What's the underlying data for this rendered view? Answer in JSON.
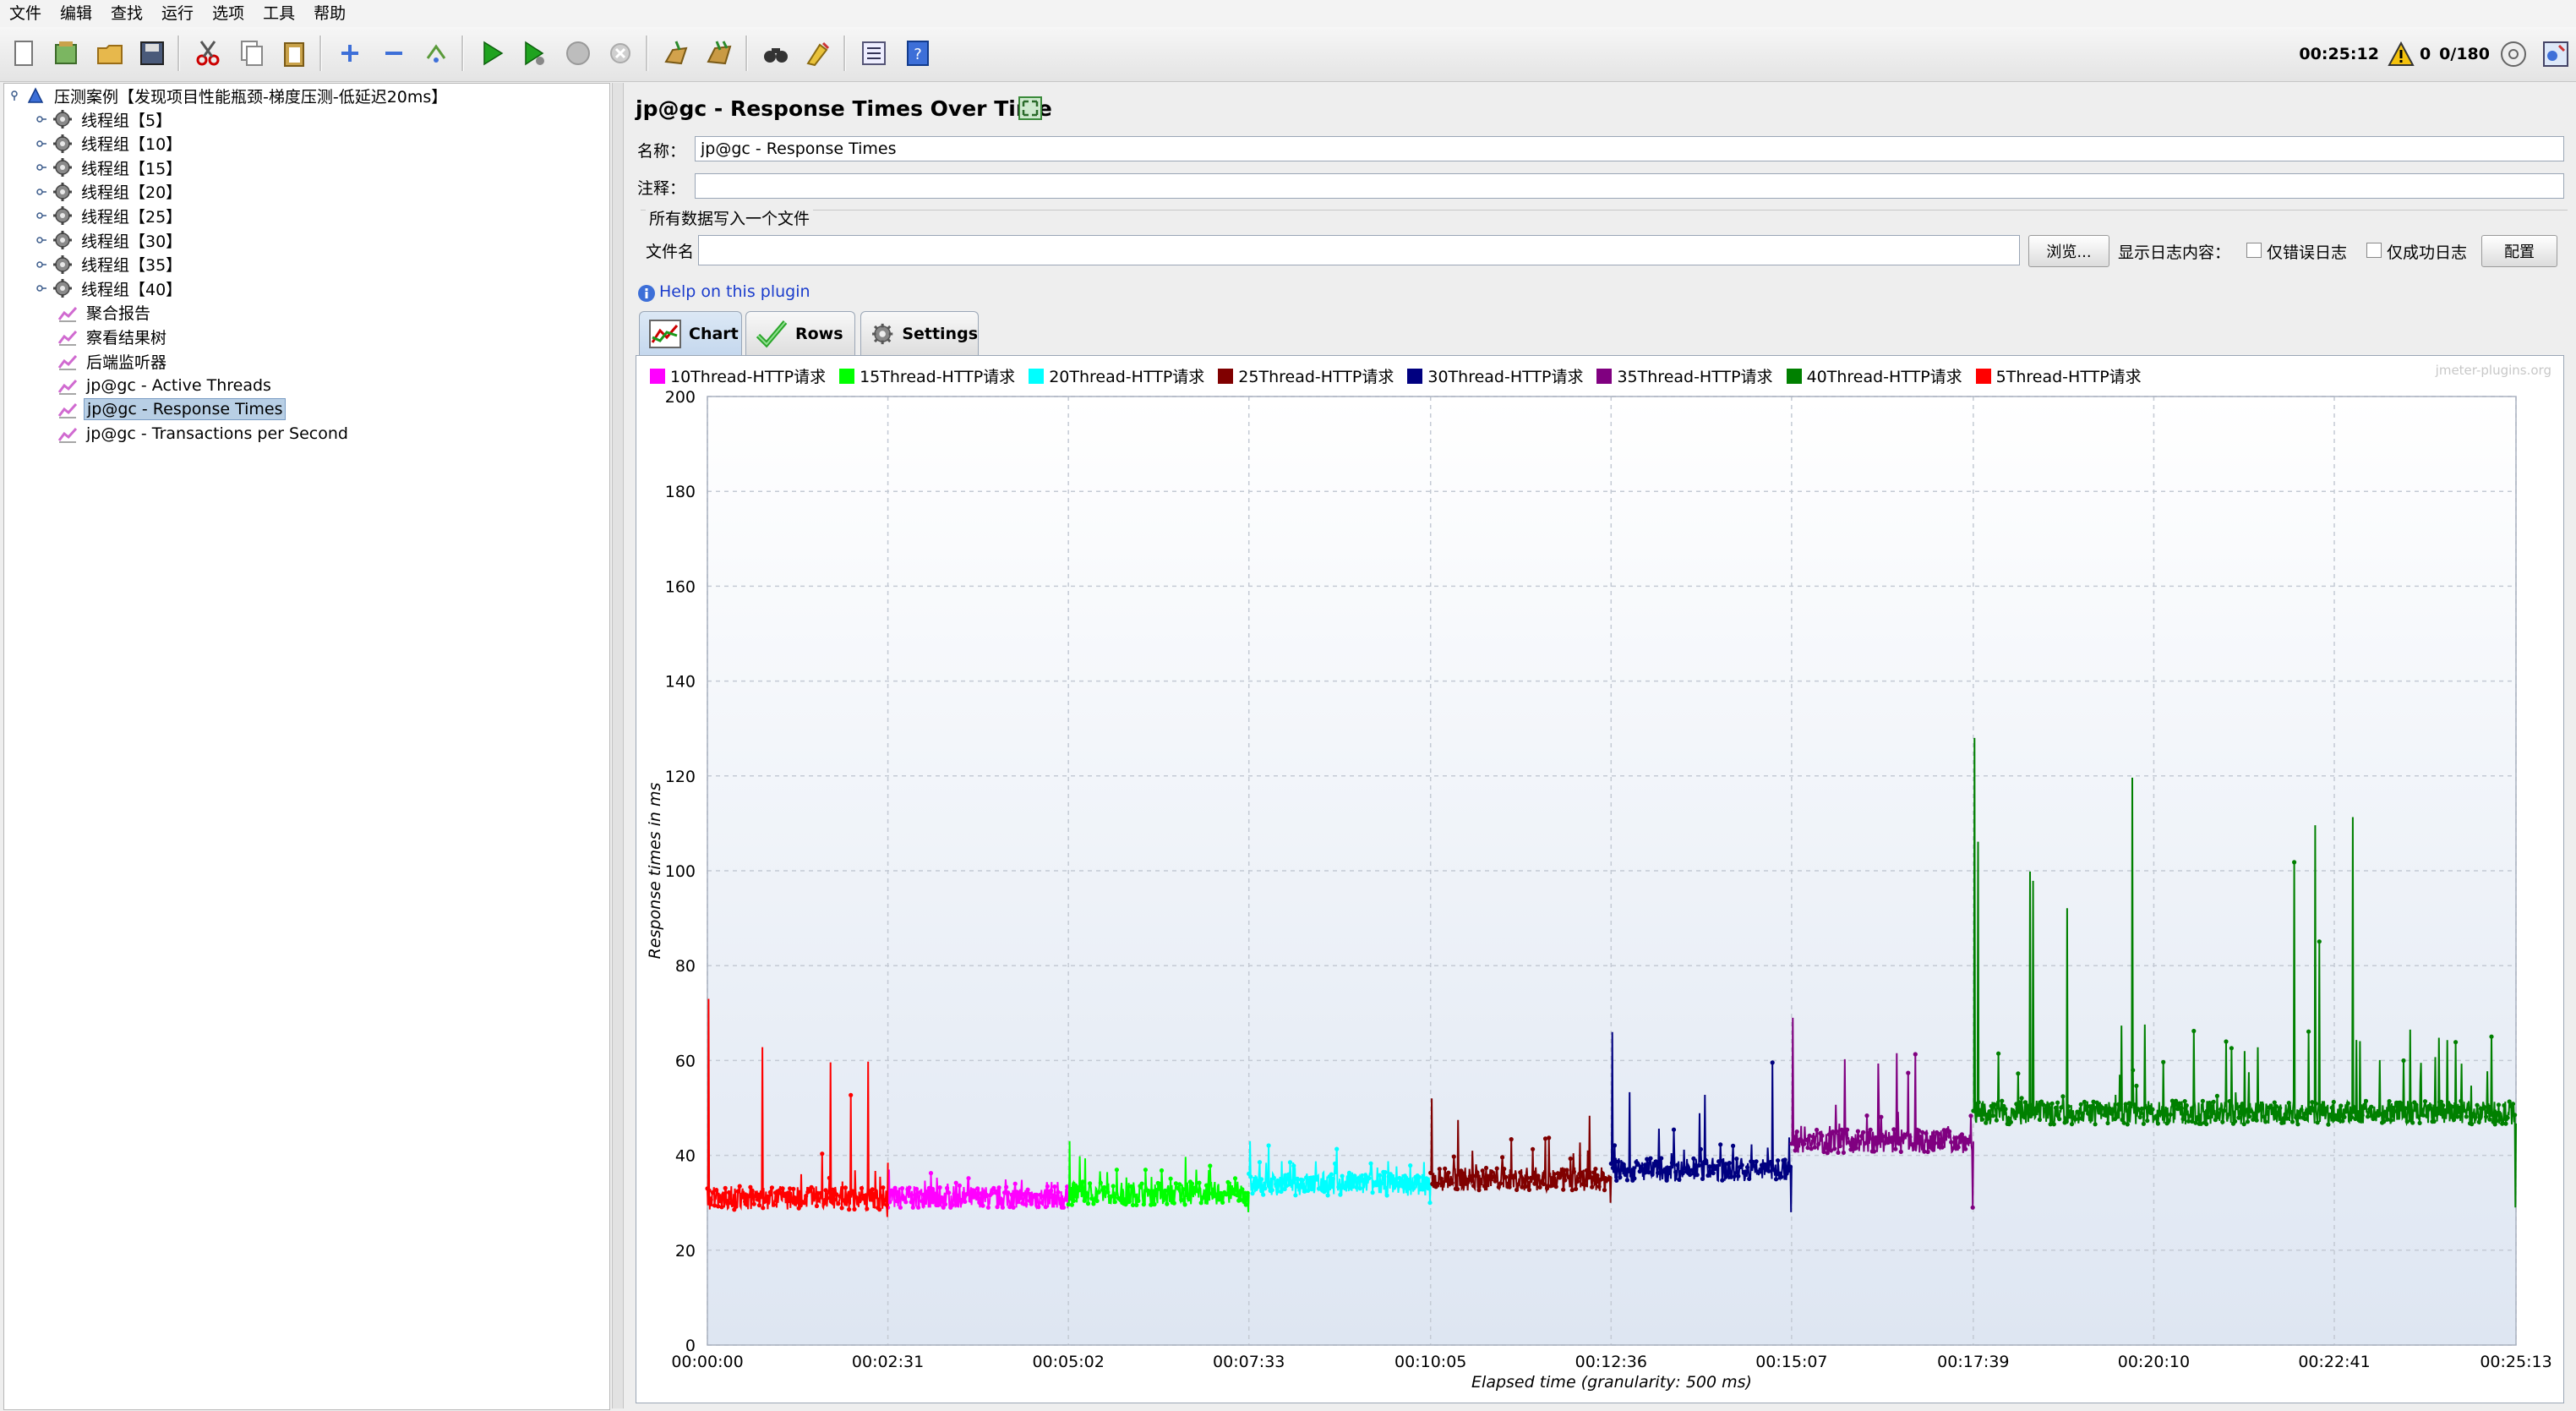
{
  "menubar": [
    "文件",
    "编辑",
    "查找",
    "运行",
    "选项",
    "工具",
    "帮助"
  ],
  "status": {
    "elapsed": "00:25:12",
    "warnings": "0",
    "threads": "0/180"
  },
  "tree": {
    "root": "压测案例【发现项目性能瓶颈-梯度压测-低延迟20ms】",
    "items": [
      {
        "label": "线程组【5】",
        "kind": "thread-group"
      },
      {
        "label": "线程组【10】",
        "kind": "thread-group"
      },
      {
        "label": "线程组【15】",
        "kind": "thread-group"
      },
      {
        "label": "线程组【20】",
        "kind": "thread-group"
      },
      {
        "label": "线程组【25】",
        "kind": "thread-group"
      },
      {
        "label": "线程组【30】",
        "kind": "thread-group"
      },
      {
        "label": "线程组【35】",
        "kind": "thread-group"
      },
      {
        "label": "线程组【40】",
        "kind": "thread-group"
      },
      {
        "label": "聚合报告",
        "kind": "listener"
      },
      {
        "label": "察看结果树",
        "kind": "listener"
      },
      {
        "label": "后端监听器",
        "kind": "listener"
      },
      {
        "label": "jp@gc - Active Threads",
        "kind": "listener"
      },
      {
        "label": "jp@gc - Response Times",
        "kind": "listener",
        "selected": true
      },
      {
        "label": "jp@gc - Transactions per Second",
        "kind": "listener"
      }
    ]
  },
  "panel": {
    "title": "jp@gc - Response Times Over Time",
    "name_label": "名称：",
    "name_value": "jp@gc - Response Times",
    "comment_label": "注释：",
    "comment_value": "",
    "file_group_label": "所有数据写入一个文件",
    "filename_label": "文件名",
    "filename_value": "",
    "browse_button": "浏览...",
    "log_display_label": "显示日志内容：",
    "errors_only_label": "仅错误日志",
    "success_only_label": "仅成功日志",
    "configure_button": "配置",
    "help_link": "Help on this plugin",
    "tabs": [
      "Chart",
      "Rows",
      "Settings"
    ],
    "watermark": "jmeter-plugins.org"
  },
  "chart_data": {
    "type": "line",
    "title": "",
    "xlabel": "Elapsed time (granularity: 500 ms)",
    "ylabel": "Response times in ms",
    "ylim": [
      0,
      200
    ],
    "yticks": [
      0,
      20,
      40,
      60,
      80,
      100,
      120,
      140,
      160,
      180,
      200
    ],
    "xlim_seconds": [
      0,
      1513
    ],
    "xticks": [
      "00:00:00",
      "00:02:31",
      "00:05:02",
      "00:07:33",
      "00:10:05",
      "00:12:36",
      "00:15:07",
      "00:17:39",
      "00:20:10",
      "00:22:41",
      "00:25:13"
    ],
    "grid": true,
    "legend_position": "top",
    "series": [
      {
        "name": "10Thread-HTTP请求",
        "color": "#ff00ff",
        "t_start": "00:02:31",
        "t_end": "00:05:02",
        "mean_ms": 31,
        "min_ms": 29,
        "max_ms": 37
      },
      {
        "name": "15Thread-HTTP请求",
        "color": "#00ff00",
        "t_start": "00:05:02",
        "t_end": "00:07:33",
        "mean_ms": 32,
        "min_ms": 28,
        "max_ms": 43
      },
      {
        "name": "20Thread-HTTP请求",
        "color": "#00ffff",
        "t_start": "00:07:33",
        "t_end": "00:10:05",
        "mean_ms": 34,
        "min_ms": 30,
        "max_ms": 43
      },
      {
        "name": "25Thread-HTTP请求",
        "color": "#800000",
        "t_start": "00:10:05",
        "t_end": "00:12:36",
        "mean_ms": 35,
        "min_ms": 30,
        "max_ms": 52
      },
      {
        "name": "30Thread-HTTP请求",
        "color": "#000080",
        "t_start": "00:12:36",
        "t_end": "00:15:07",
        "mean_ms": 37,
        "min_ms": 28,
        "max_ms": 66
      },
      {
        "name": "35Thread-HTTP请求",
        "color": "#800080",
        "t_start": "00:15:07",
        "t_end": "00:17:39",
        "mean_ms": 43,
        "min_ms": 29,
        "max_ms": 69
      },
      {
        "name": "40Thread-HTTP请求",
        "color": "#008000",
        "t_start": "00:17:39",
        "t_end": "00:25:13",
        "mean_ms": 49,
        "min_ms": 29,
        "max_ms": 128
      },
      {
        "name": "5Thread-HTTP请求",
        "color": "#ff0000",
        "t_start": "00:00:00",
        "t_end": "00:02:31",
        "mean_ms": 31,
        "min_ms": 27,
        "max_ms": 73
      }
    ]
  }
}
